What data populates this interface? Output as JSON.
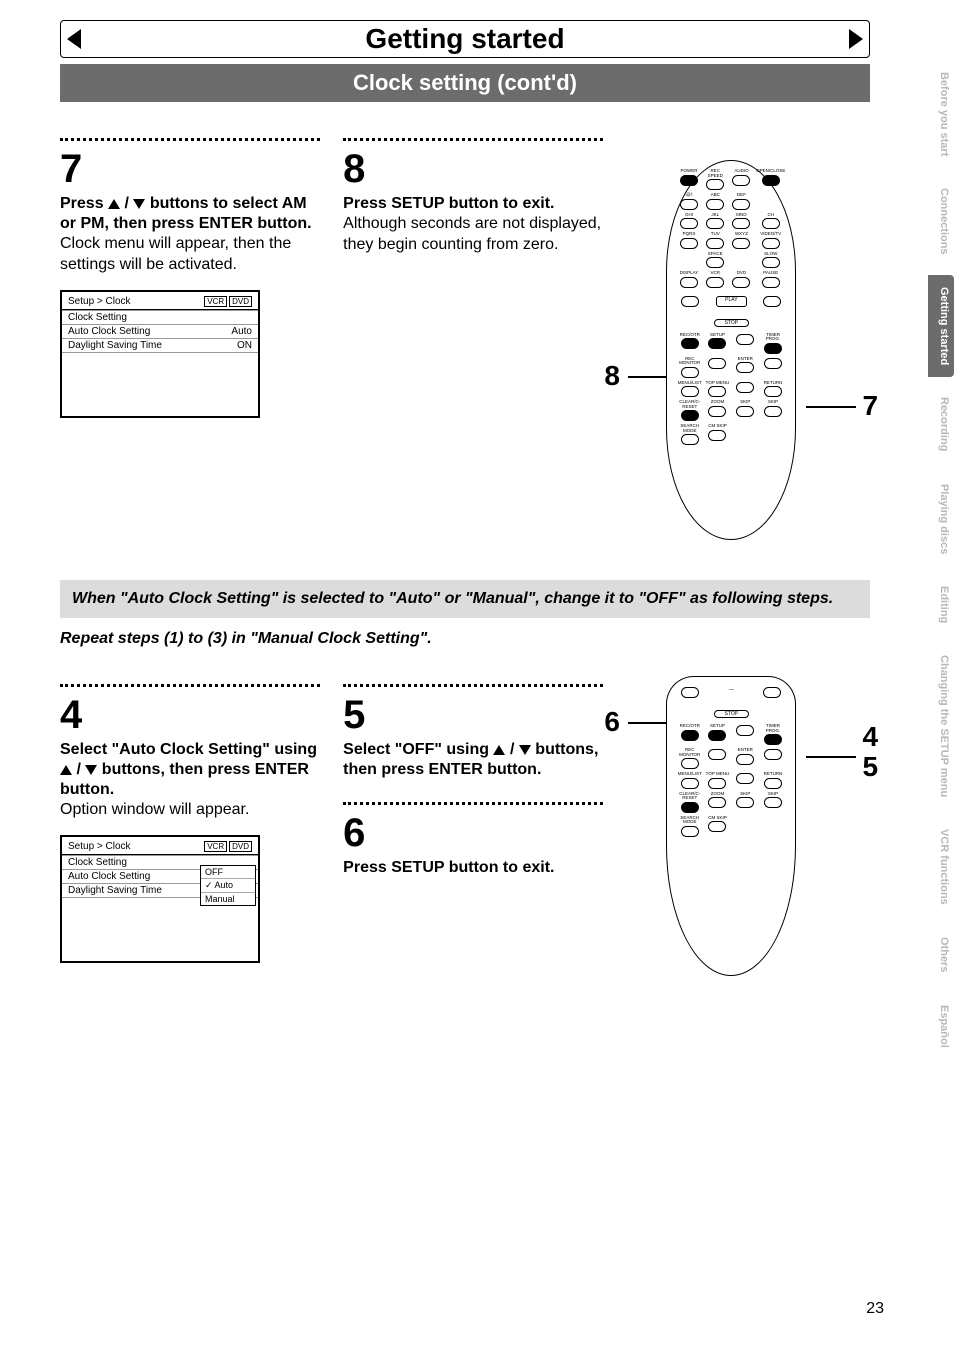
{
  "page_number": "23",
  "header": {
    "title": "Getting started",
    "subtitle": "Clock setting (cont'd)"
  },
  "tabs": [
    {
      "label": "Before you start",
      "active": false
    },
    {
      "label": "Connections",
      "active": false
    },
    {
      "label": "Getting started",
      "active": true
    },
    {
      "label": "Recording",
      "active": false
    },
    {
      "label": "Playing discs",
      "active": false
    },
    {
      "label": "Editing",
      "active": false
    },
    {
      "label": "Changing the SETUP menu",
      "active": false
    },
    {
      "label": "VCR functions",
      "active": false
    },
    {
      "label": "Others",
      "active": false
    },
    {
      "label": "Español",
      "active": false
    }
  ],
  "section_a": {
    "step7": {
      "num": "7",
      "bold_pre": "Press ",
      "bold_mid": " buttons to select AM or PM, then press ENTER button.",
      "body": "Clock menu will appear, then the settings will be activated."
    },
    "step8": {
      "num": "8",
      "bold": "Press SETUP button to exit.",
      "body": "Although seconds are not displayed, they begin counting from zero."
    },
    "menu1": {
      "title": "Setup > Clock",
      "tags": [
        "VCR",
        "DVD"
      ],
      "rows": [
        {
          "l": "Clock Setting",
          "r": ""
        },
        {
          "l": "Auto Clock Setting",
          "r": "Auto"
        },
        {
          "l": "Daylight Saving Time",
          "r": "ON"
        }
      ]
    },
    "callout7": "7",
    "callout8": "8"
  },
  "note": "When \"Auto Clock Setting\" is selected to \"Auto\" or \"Manual\", change it to \"OFF\" as following steps.",
  "repeat": "Repeat steps (1) to (3) in \"Manual Clock Setting\".",
  "section_b": {
    "step4": {
      "num": "4",
      "bold_pre": "Select \"Auto Clock Setting\" using ",
      "bold_post": " buttons, then press ENTER button.",
      "body": "Option window will appear."
    },
    "step5": {
      "num": "5",
      "bold_pre": "Select \"OFF\" using ",
      "bold_post": " buttons, then press ENTER button."
    },
    "step6": {
      "num": "6",
      "bold": "Press SETUP button to exit."
    },
    "menu2": {
      "title": "Setup > Clock",
      "tags": [
        "VCR",
        "DVD"
      ],
      "rows": [
        {
          "l": "Clock Setting",
          "r": ""
        },
        {
          "l": "Auto Clock Setting",
          "r": ""
        },
        {
          "l": "Daylight Saving Time",
          "r": ""
        }
      ],
      "popup": [
        "OFF",
        "Auto",
        "Manual"
      ],
      "popup_selected": 1
    },
    "callout4": "4",
    "callout5": "5",
    "callout6": "6"
  },
  "remote_big_rows": [
    [
      "POWER",
      "REC SPEED",
      "AUDIO",
      "OPEN/CLOSE"
    ],
    [
      ".@/:",
      "ABC",
      "DEF",
      ""
    ],
    [
      "1",
      "2",
      "3",
      ""
    ],
    [
      "GHI",
      "JKL",
      "MNO",
      "CH"
    ],
    [
      "4",
      "5",
      "6",
      ""
    ],
    [
      "PQRS",
      "TUV",
      "WXYZ",
      "VIDEO/TV"
    ],
    [
      "7",
      "8",
      "9",
      ""
    ],
    [
      "",
      "SPACE",
      "",
      "SLOW"
    ],
    [
      "",
      "0",
      "",
      ""
    ],
    [
      "DISPLAY",
      "VCR",
      "DVD",
      "PAUSE"
    ],
    [
      "",
      "",
      "",
      ""
    ]
  ],
  "remote_lower_labels": [
    "PLAY",
    "STOP",
    "REC/OTR",
    "SETUP",
    "TIMER PROG.",
    "REC MONITOR",
    "ENTER",
    "MENU/LIST",
    "TOP MENU",
    "RETURN",
    "CLEAR/C-RESET",
    "ZOOM",
    "SKIP",
    "SKIP",
    "SEARCH MODE",
    "CM SKIP"
  ],
  "colors": {
    "banner_bg": "#6c6c6c",
    "tab_inactive": "#b8b8b8",
    "note_bg": "#dcdcdc"
  }
}
